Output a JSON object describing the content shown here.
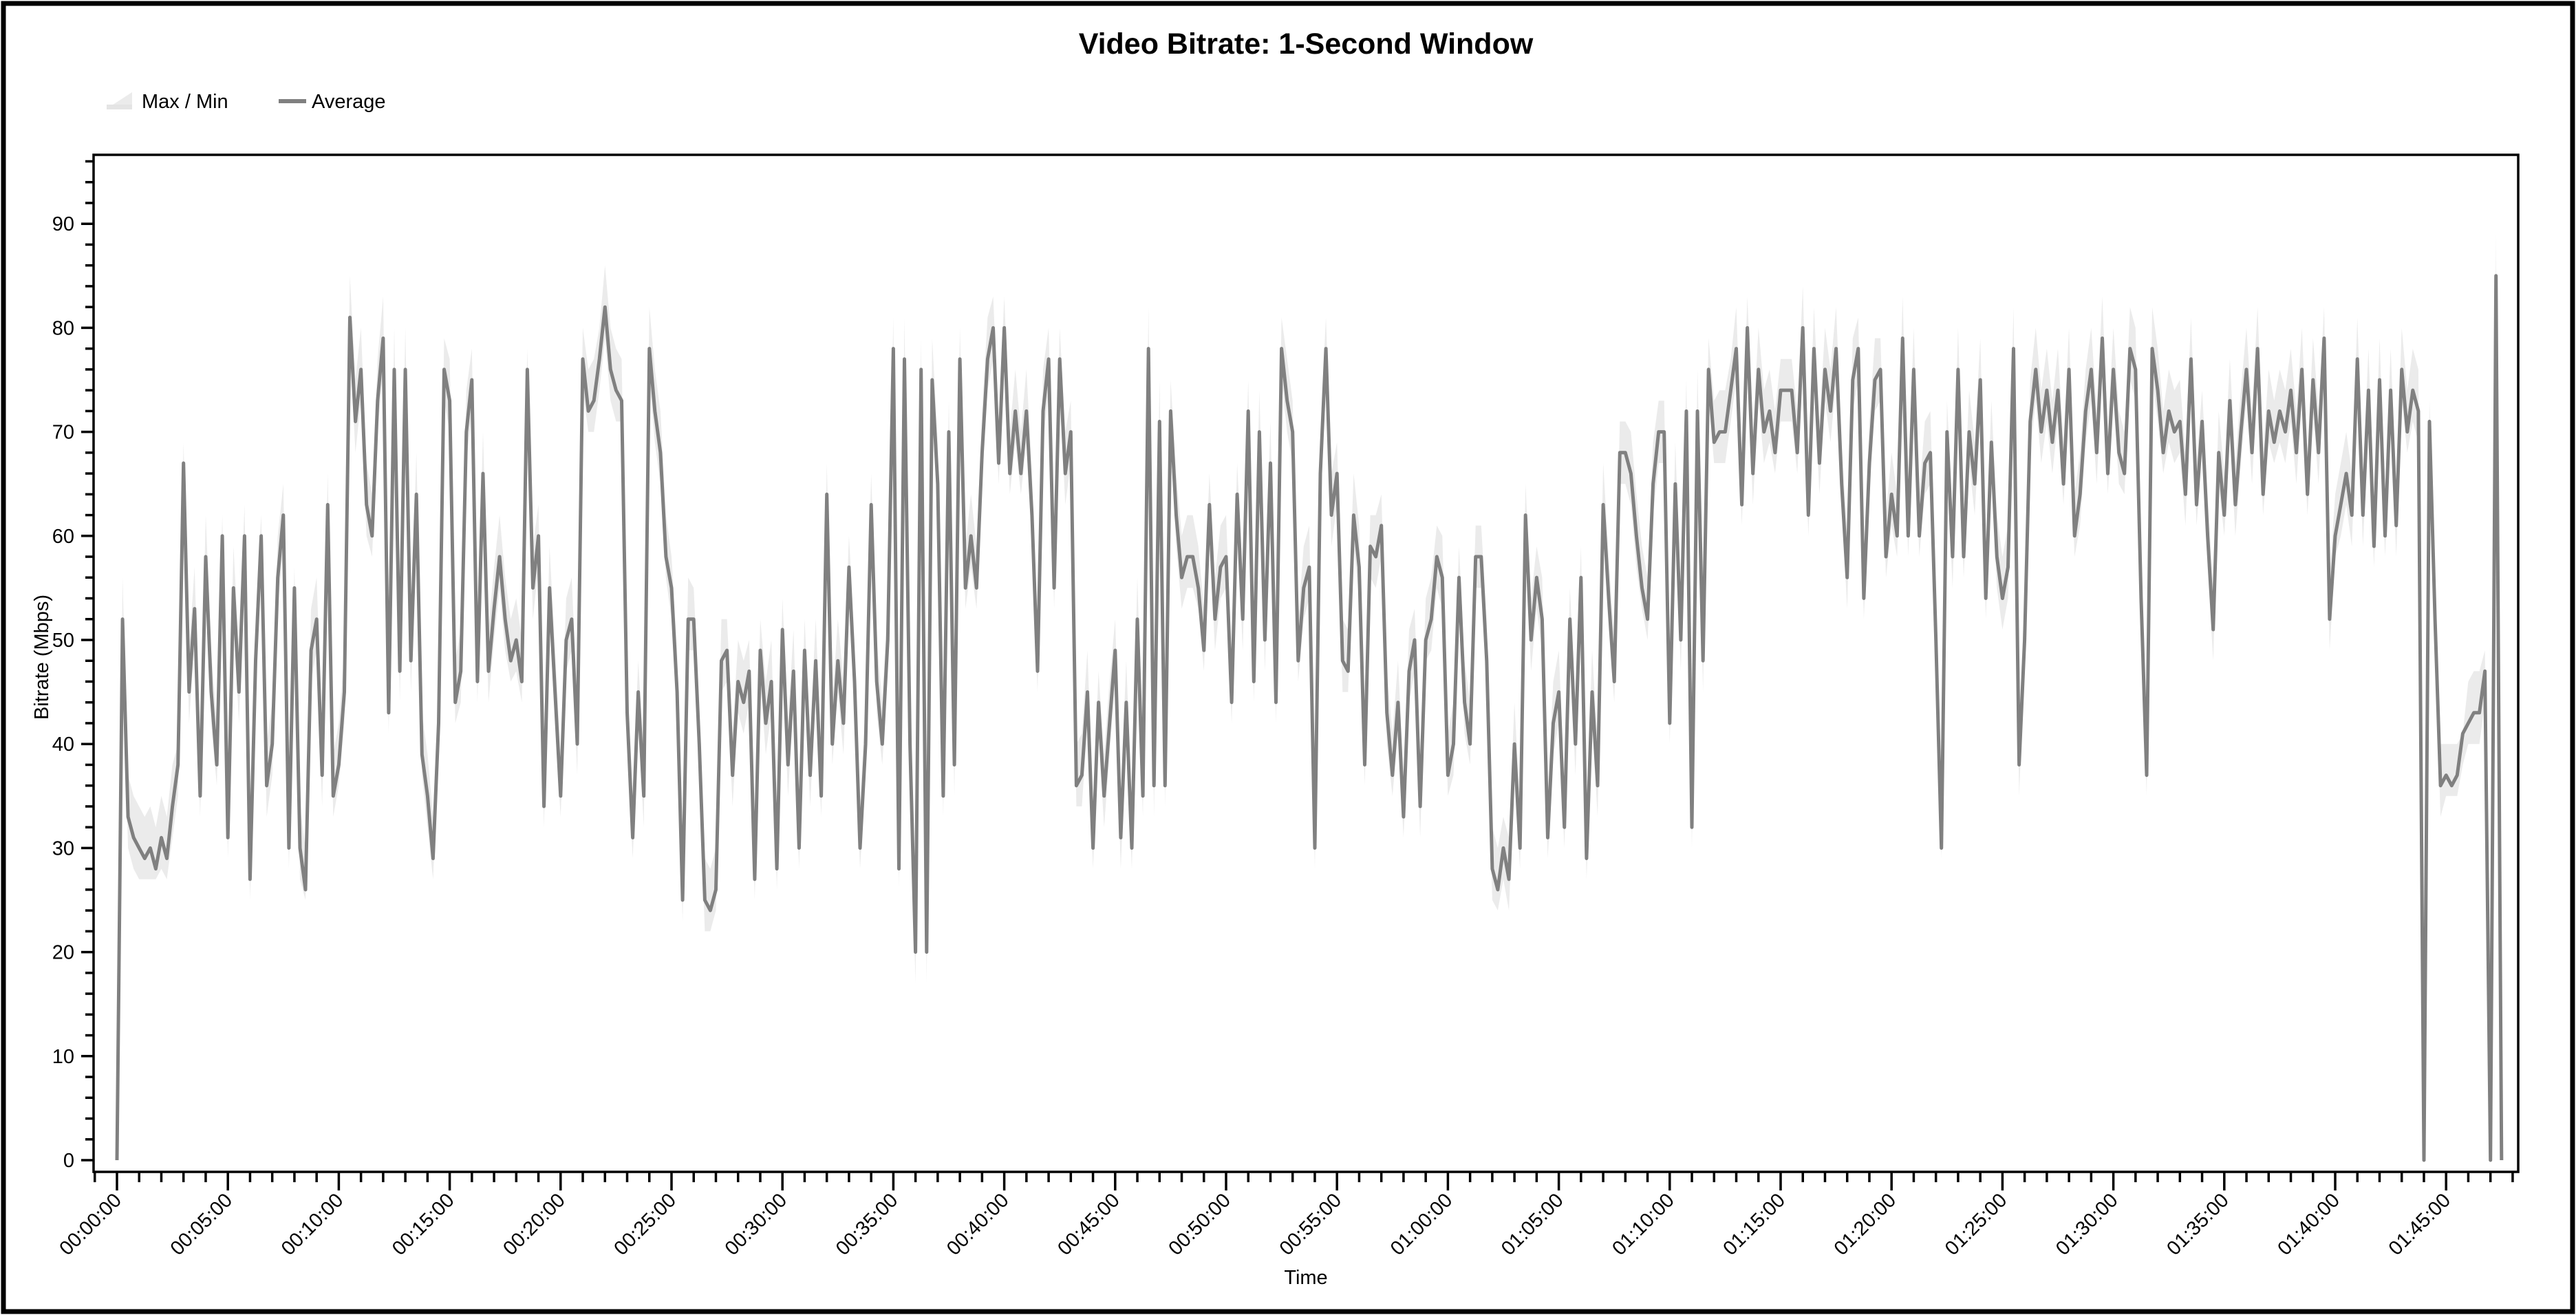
{
  "chart_data": {
    "type": "line",
    "title": "Video Bitrate: 1-Second Window",
    "xlabel": "Time",
    "ylabel": "Bitrate (Mbps)",
    "grid": false,
    "legend_position": "top-left",
    "legend": [
      {
        "label": "Max / Min",
        "kind": "area",
        "color": "#ebebeb"
      },
      {
        "label": "Average",
        "kind": "line",
        "color": "#808080"
      }
    ],
    "x_unit": "minutes",
    "xlim": [
      -1.05,
      108.2
    ],
    "ylim": [
      -1.1,
      96.6
    ],
    "x_ticks": {
      "values": [
        0,
        5,
        10,
        15,
        20,
        25,
        30,
        35,
        40,
        45,
        50,
        55,
        60,
        65,
        70,
        75,
        80,
        85,
        90,
        95,
        100,
        105
      ],
      "labels": [
        "00:00:00",
        "00:05:00",
        "00:10:00",
        "00:15:00",
        "00:20:00",
        "00:25:00",
        "00:30:00",
        "00:35:00",
        "00:40:00",
        "00:45:00",
        "00:50:00",
        "00:55:00",
        "01:00:00",
        "01:05:00",
        "01:10:00",
        "01:15:00",
        "01:20:00",
        "01:25:00",
        "01:30:00",
        "01:35:00",
        "01:40:00",
        "01:45:00"
      ]
    },
    "y_ticks": {
      "values": [
        0,
        10,
        20,
        30,
        40,
        50,
        60,
        70,
        80,
        90
      ],
      "labels": [
        "0",
        "10",
        "20",
        "30",
        "40",
        "50",
        "60",
        "70",
        "80",
        "90"
      ]
    },
    "series": [
      {
        "name": "Average",
        "start_min": 0,
        "step_sec": 15,
        "values": [
          0,
          52,
          33,
          31,
          30,
          29,
          30,
          28,
          31,
          29,
          34,
          38,
          67,
          45,
          53,
          35,
          58,
          45,
          38,
          60,
          31,
          55,
          45,
          60,
          27,
          48,
          60,
          36,
          40,
          56,
          62,
          30,
          55,
          30,
          26,
          49,
          52,
          37,
          63,
          35,
          38,
          45,
          81,
          71,
          76,
          63,
          60,
          73,
          79,
          43,
          76,
          47,
          76,
          48,
          64,
          39,
          35,
          29,
          42,
          76,
          73,
          44,
          47,
          70,
          75,
          46,
          66,
          47,
          53,
          58,
          52,
          48,
          50,
          46,
          76,
          55,
          60,
          34,
          55,
          45,
          35,
          50,
          52,
          40,
          77,
          72,
          73,
          77,
          82,
          76,
          74,
          73,
          43,
          31,
          45,
          35,
          78,
          72,
          68,
          58,
          55,
          45,
          25,
          52,
          52,
          40,
          25,
          24,
          26,
          48,
          49,
          37,
          46,
          44,
          47,
          27,
          49,
          42,
          46,
          28,
          51,
          38,
          47,
          30,
          49,
          37,
          48,
          35,
          64,
          40,
          48,
          42,
          57,
          46,
          30,
          40,
          63,
          46,
          40,
          50,
          78,
          28,
          77,
          40,
          20,
          76,
          20,
          75,
          65,
          35,
          70,
          38,
          77,
          55,
          60,
          55,
          68,
          77,
          80,
          67,
          80,
          66,
          72,
          66,
          72,
          62,
          47,
          72,
          77,
          55,
          77,
          66,
          70,
          36,
          37,
          45,
          30,
          44,
          35,
          42,
          49,
          31,
          44,
          30,
          52,
          35,
          78,
          36,
          71,
          36,
          72,
          62,
          56,
          58,
          58,
          55,
          49,
          63,
          52,
          57,
          58,
          44,
          64,
          52,
          72,
          46,
          70,
          50,
          67,
          44,
          78,
          73,
          70,
          48,
          55,
          57,
          30,
          66,
          78,
          62,
          66,
          48,
          47,
          62,
          57,
          38,
          59,
          58,
          61,
          43,
          37,
          44,
          33,
          47,
          50,
          34,
          50,
          52,
          58,
          56,
          37,
          40,
          56,
          44,
          40,
          58,
          58,
          48,
          28,
          26,
          30,
          27,
          40,
          30,
          62,
          50,
          56,
          52,
          31,
          42,
          45,
          32,
          52,
          40,
          56,
          29,
          45,
          36,
          63,
          54,
          46,
          68,
          68,
          66,
          60,
          55,
          52,
          65,
          70,
          70,
          42,
          65,
          50,
          72,
          32,
          72,
          48,
          76,
          69,
          70,
          70,
          74,
          78,
          63,
          80,
          66,
          76,
          70,
          72,
          68,
          74,
          74,
          74,
          68,
          80,
          62,
          78,
          67,
          76,
          72,
          78,
          65,
          56,
          75,
          78,
          54,
          67,
          75,
          76,
          58,
          64,
          60,
          79,
          60,
          76,
          60,
          67,
          68,
          50,
          30,
          70,
          58,
          76,
          58,
          70,
          65,
          75,
          54,
          69,
          58,
          54,
          57,
          78,
          38,
          50,
          71,
          76,
          70,
          74,
          69,
          74,
          65,
          76,
          60,
          64,
          72,
          76,
          68,
          79,
          66,
          76,
          68,
          66,
          78,
          76,
          54,
          37,
          78,
          74,
          68,
          72,
          70,
          71,
          64,
          77,
          63,
          71,
          60,
          51,
          68,
          62,
          73,
          63,
          70,
          76,
          68,
          78,
          64,
          72,
          69,
          72,
          70,
          74,
          68,
          76,
          64,
          75,
          68,
          79,
          52,
          60,
          63,
          66,
          62,
          77,
          62,
          74,
          59,
          75,
          60,
          74,
          61,
          76,
          70,
          74,
          72,
          0,
          71,
          52,
          36,
          37,
          36,
          37,
          41,
          42,
          43,
          43,
          47,
          0,
          85,
          0
        ]
      },
      {
        "name": "Max / Min",
        "start_min": 0,
        "step_sec": 60,
        "max": [
          58,
          34,
          40,
          69,
          62,
          63,
          62,
          65,
          57,
          66,
          85,
          80,
          83,
          80,
          79,
          77,
          78,
          62,
          78,
          63,
          56,
          80,
          89,
          48,
          82,
          58,
          55,
          52,
          50,
          52,
          54,
          52,
          67,
          60,
          66,
          81,
          79,
          73,
          80,
          83,
          83,
          76,
          80,
          73,
          47,
          52,
          88,
          75,
          62,
          66,
          67,
          75,
          81,
          73,
          81,
          69,
          62,
          64,
          53,
          61,
          59,
          61,
          33,
          65,
          59,
          55,
          59,
          71,
          71,
          73,
          75,
          79,
          77,
          83,
          84,
          77,
          85,
          82,
          81,
          79,
          83,
          80,
          73,
          80,
          79,
          82,
          80,
          78,
          80,
          84,
          90,
          82,
          78,
          81,
          74,
          77,
          82,
          77,
          80,
          82,
          70,
          81,
          80,
          82,
          73,
          40,
          49,
          96
        ],
        "min": [
          0,
          27,
          27,
          33,
          36,
          29,
          25,
          28,
          25,
          33,
          36,
          58,
          41,
          37,
          27,
          42,
          44,
          46,
          44,
          32,
          33,
          70,
          71,
          29,
          56,
          23,
          22,
          24,
          25,
          26,
          28,
          33,
          38,
          28,
          38,
          26,
          17,
          33,
          53,
          65,
          64,
          45,
          53,
          34,
          28,
          28,
          33,
          34,
          53,
          47,
          42,
          44,
          42,
          46,
          28,
          45,
          36,
          35,
          31,
          48,
          35,
          38,
          24,
          28,
          29,
          30,
          27,
          44,
          53,
          50,
          40,
          30,
          67,
          61,
          66,
          66,
          60,
          63,
          52,
          56,
          58,
          58,
          29,
          56,
          52,
          35,
          48,
          63,
          58,
          64,
          64,
          35,
          66,
          61,
          44,
          60,
          62,
          67,
          62,
          48,
          58,
          57,
          58,
          68,
          0,
          35,
          40,
          0
        ]
      }
    ]
  }
}
